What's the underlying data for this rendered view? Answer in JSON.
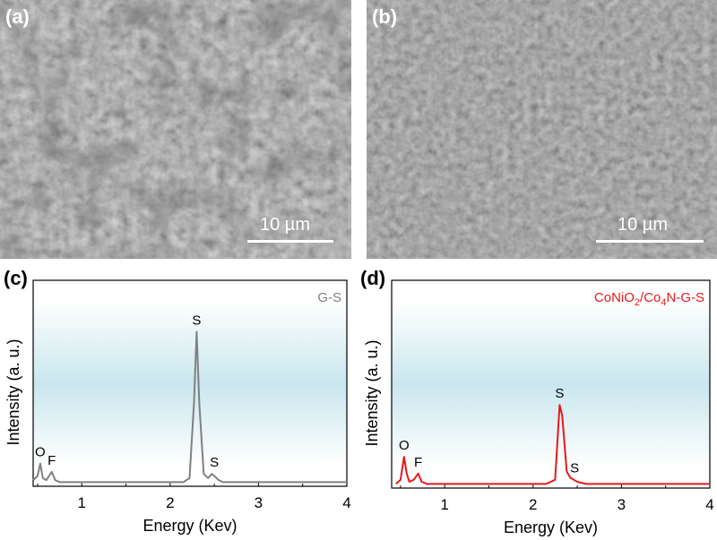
{
  "panels": {
    "a": {
      "label": "(a)",
      "scale_bar": "10 µm"
    },
    "b": {
      "label": "(b)",
      "scale_bar": "10 µm"
    },
    "c": {
      "label": "(c)"
    },
    "d": {
      "label": "(d)"
    }
  },
  "chart_data": [
    {
      "type": "line",
      "panel": "(c)",
      "xlabel": "Energy (Kev)",
      "ylabel": "Intensity (a. u.)",
      "xlim": [
        0.45,
        4.0
      ],
      "ylim": [
        0,
        100
      ],
      "xticks": [
        1,
        2,
        3,
        4
      ],
      "xtick_labels": [
        "1",
        "2",
        "3",
        "4"
      ],
      "legend": "G-S",
      "color": "#808080",
      "series": [
        {
          "name": "G-S",
          "x": [
            0.45,
            0.5,
            0.53,
            0.56,
            0.6,
            0.63,
            0.66,
            0.7,
            0.75,
            1.0,
            1.5,
            2.0,
            2.15,
            2.22,
            2.27,
            2.3,
            2.33,
            2.38,
            2.43,
            2.47,
            2.5,
            2.55,
            2.6,
            3.0,
            3.5,
            4.0
          ],
          "y": [
            3,
            5,
            11,
            4,
            3,
            5,
            7,
            3,
            2,
            2,
            2,
            2,
            2,
            4,
            40,
            75,
            40,
            6,
            4,
            6,
            5,
            3,
            2,
            2,
            2,
            2
          ]
        }
      ],
      "annotations": [
        {
          "text": "O",
          "x": 0.53,
          "y": 11
        },
        {
          "text": "F",
          "x": 0.66,
          "y": 7
        },
        {
          "text": "S",
          "x": 2.3,
          "y": 75
        },
        {
          "text": "S",
          "x": 2.5,
          "y": 6
        }
      ]
    },
    {
      "type": "line",
      "panel": "(d)",
      "xlabel": "Energy (Kev)",
      "ylabel": "Intensity (a. u.)",
      "xlim": [
        0.4,
        4.0
      ],
      "ylim": [
        0,
        100
      ],
      "xticks": [
        1,
        2,
        3,
        4
      ],
      "xtick_labels": [
        "1",
        "2",
        "3",
        "4"
      ],
      "legend_parts": [
        {
          "t": "CoNiO"
        },
        {
          "t": "2",
          "sub": true
        },
        {
          "t": "/Co"
        },
        {
          "t": "4",
          "sub": true
        },
        {
          "t": "N-G-S"
        }
      ],
      "color": "#e41a1c",
      "series": [
        {
          "name": "CoNiO2/Co4N-G-S",
          "x": [
            0.45,
            0.5,
            0.54,
            0.57,
            0.6,
            0.65,
            0.7,
            0.74,
            0.8,
            1.0,
            1.5,
            2.0,
            2.15,
            2.25,
            2.3,
            2.33,
            2.38,
            2.42,
            2.46,
            2.5,
            2.6,
            3.0,
            3.5,
            4.0
          ],
          "y": [
            2,
            4,
            15,
            7,
            3,
            4,
            7,
            3,
            2,
            2,
            2,
            2,
            2,
            4,
            40,
            35,
            8,
            5,
            4,
            3,
            2,
            2,
            2,
            2
          ]
        }
      ],
      "annotations": [
        {
          "text": "O",
          "x": 0.54,
          "y": 15
        },
        {
          "text": "F",
          "x": 0.7,
          "y": 7
        },
        {
          "text": "S",
          "x": 2.3,
          "y": 40
        },
        {
          "text": "S",
          "x": 2.47,
          "y": 4
        }
      ]
    }
  ]
}
